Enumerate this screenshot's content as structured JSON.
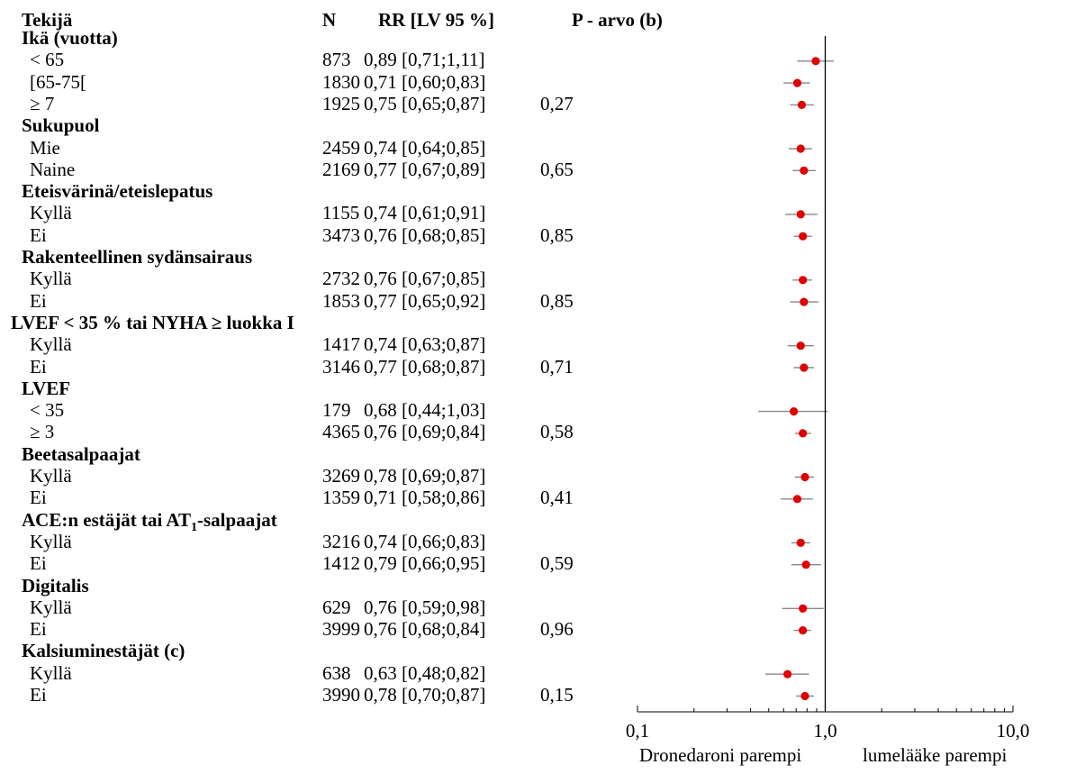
{
  "header": {
    "col_factor": "Tekijä",
    "col_n": "N",
    "col_rr": "RR [LV 95 %]",
    "col_p": "P - arvo (b)"
  },
  "chart_data": {
    "type": "forest",
    "x_scale": "log",
    "xlim": [
      0.1,
      10
    ],
    "x_ticks": [
      "0,1",
      "1,0",
      "10,0"
    ],
    "x_tick_values": [
      0.1,
      1.0,
      10.0
    ],
    "reference_line": 1.0,
    "footer_left": "Dronedaroni parempi",
    "footer_right": "lumelääke parempi",
    "point_color": "#e00000",
    "rows": [
      {
        "kind": "group",
        "label": "Ikä (vuotta)"
      },
      {
        "kind": "item",
        "label": "< 65",
        "n": "873",
        "rr_text": "0,89 [0,71;1,11]",
        "p": "",
        "rr": 0.89,
        "lo": 0.71,
        "hi": 1.11
      },
      {
        "kind": "item",
        "label": "[65-75[",
        "n": "1830",
        "rr_text": "0,71 [0,60;0,83]",
        "p": "",
        "rr": 0.71,
        "lo": 0.6,
        "hi": 0.83
      },
      {
        "kind": "item",
        "label": "≥ 7",
        "n": "1925",
        "rr_text": "0,75 [0,65;0,87]",
        "p": "0,27",
        "rr": 0.75,
        "lo": 0.65,
        "hi": 0.87
      },
      {
        "kind": "group",
        "label": "Sukupuol"
      },
      {
        "kind": "item",
        "label": "Mie",
        "n": "2459",
        "rr_text": "0,74 [0,64;0,85]",
        "p": "",
        "rr": 0.74,
        "lo": 0.64,
        "hi": 0.85
      },
      {
        "kind": "item",
        "label": "Naine",
        "n": "2169",
        "rr_text": "0,77 [0,67;0,89]",
        "p": "0,65",
        "rr": 0.77,
        "lo": 0.67,
        "hi": 0.89
      },
      {
        "kind": "group",
        "label": "Eteisvärinä/eteislepatus"
      },
      {
        "kind": "item",
        "label": "Kyllä",
        "n": "1155",
        "rr_text": "0,74 [0,61;0,91]",
        "p": "",
        "rr": 0.74,
        "lo": 0.61,
        "hi": 0.91
      },
      {
        "kind": "item",
        "label": "Ei",
        "n": "3473",
        "rr_text": "0,76 [0,68;0,85]",
        "p": "0,85",
        "rr": 0.76,
        "lo": 0.68,
        "hi": 0.85
      },
      {
        "kind": "group",
        "label": "Rakenteellinen sydänsairaus"
      },
      {
        "kind": "item",
        "label": "Kyllä",
        "n": "2732",
        "rr_text": "0,76 [0,67;0,85]",
        "p": "",
        "rr": 0.76,
        "lo": 0.67,
        "hi": 0.85
      },
      {
        "kind": "item",
        "label": "Ei",
        "n": "1853",
        "rr_text": "0,77 [0,65;0,92]",
        "p": "0,85",
        "rr": 0.77,
        "lo": 0.65,
        "hi": 0.92
      },
      {
        "kind": "group",
        "label": "LVEF < 35 % tai NYHA ≥ luokka I"
      },
      {
        "kind": "item",
        "label": "Kyllä",
        "n": "1417",
        "rr_text": "0,74 [0,63;0,87]",
        "p": "",
        "rr": 0.74,
        "lo": 0.63,
        "hi": 0.87
      },
      {
        "kind": "item",
        "label": "Ei",
        "n": "3146",
        "rr_text": "0,77 [0,68;0,87]",
        "p": "0,71",
        "rr": 0.77,
        "lo": 0.68,
        "hi": 0.87
      },
      {
        "kind": "group",
        "label": "LVEF"
      },
      {
        "kind": "item",
        "label": "< 35",
        "n": "179",
        "rr_text": "0,68 [0,44;1,03]",
        "p": "",
        "rr": 0.68,
        "lo": 0.44,
        "hi": 1.03
      },
      {
        "kind": "item",
        "label": "≥ 3",
        "n": "4365",
        "rr_text": "0,76 [0,69;0,84]",
        "p": "0,58",
        "rr": 0.76,
        "lo": 0.69,
        "hi": 0.84
      },
      {
        "kind": "group",
        "label": "Beetasalpaajat"
      },
      {
        "kind": "item",
        "label": "Kyllä",
        "n": "3269",
        "rr_text": "0,78 [0,69;0,87]",
        "p": "",
        "rr": 0.78,
        "lo": 0.69,
        "hi": 0.87
      },
      {
        "kind": "item",
        "label": "Ei",
        "n": "1359",
        "rr_text": "0,71 [0,58;0,86]",
        "p": "0,41",
        "rr": 0.71,
        "lo": 0.58,
        "hi": 0.86
      },
      {
        "kind": "group",
        "label": "ACE:n estäjät tai AT",
        "label_sub": "1",
        "label_after": "-salpaajat"
      },
      {
        "kind": "item",
        "label": "Kyllä",
        "n": "3216",
        "rr_text": "0,74 [0,66;0,83]",
        "p": "",
        "rr": 0.74,
        "lo": 0.66,
        "hi": 0.83
      },
      {
        "kind": "item",
        "label": "Ei",
        "n": "1412",
        "rr_text": "0,79 [0,66;0,95]",
        "p": "0,59",
        "rr": 0.79,
        "lo": 0.66,
        "hi": 0.95
      },
      {
        "kind": "group",
        "label": "Digitalis"
      },
      {
        "kind": "item",
        "label": "Kyllä",
        "n": "629",
        "rr_text": "0,76 [0,59;0,98]",
        "p": "",
        "rr": 0.76,
        "lo": 0.59,
        "hi": 0.98
      },
      {
        "kind": "item",
        "label": "Ei",
        "n": "3999",
        "rr_text": "0,76 [0,68;0,84]",
        "p": "0,96",
        "rr": 0.76,
        "lo": 0.68,
        "hi": 0.84
      },
      {
        "kind": "group",
        "label": "Kalsiuminestäjät (c)"
      },
      {
        "kind": "item",
        "label": "Kyllä",
        "n": "638",
        "rr_text": "0,63 [0,48;0,82]",
        "p": "",
        "rr": 0.63,
        "lo": 0.48,
        "hi": 0.82
      },
      {
        "kind": "item",
        "label": "Ei",
        "n": "3990",
        "rr_text": "0,78 [0,70;0,87]",
        "p": "0,15",
        "rr": 0.78,
        "lo": 0.7,
        "hi": 0.87
      }
    ]
  }
}
